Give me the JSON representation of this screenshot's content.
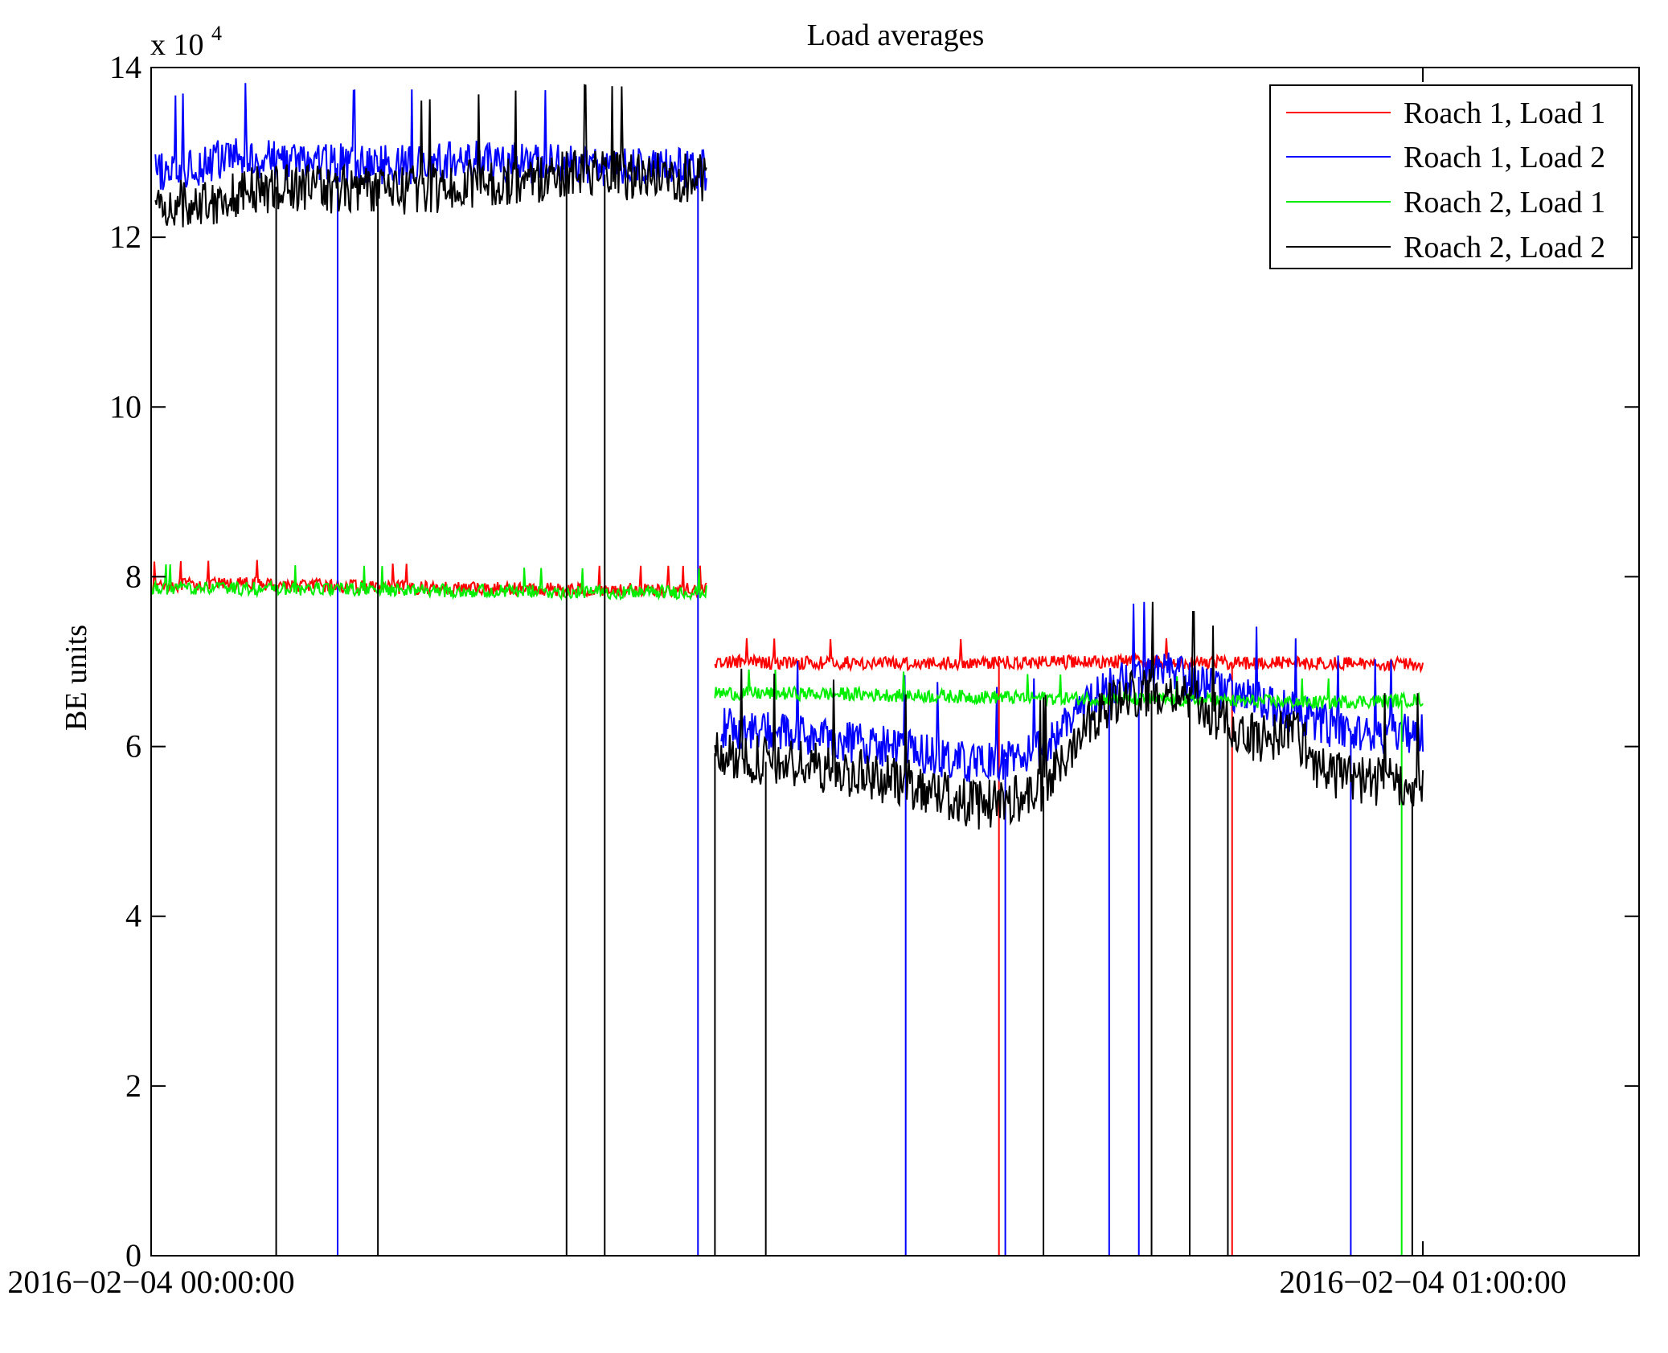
{
  "chart_data": {
    "type": "line",
    "title": "Load averages",
    "ylabel": "BE units",
    "xlabel": "",
    "y_multiplier_label": "x 10",
    "y_multiplier_exponent": "4",
    "ylim": [
      0,
      14
    ],
    "yticks": [
      "0",
      "2",
      "4",
      "6",
      "8",
      "10",
      "12",
      "14"
    ],
    "xlim_minutes": [
      0,
      70.2
    ],
    "xticks": [
      {
        "minute": 0,
        "label": "2016−02−04 00:00:00"
      },
      {
        "minute": 60,
        "label": "2016−02−04 01:00:00"
      }
    ],
    "legend_position": "top-right",
    "grid": false,
    "series": [
      {
        "name": "Roach 1, Load 1",
        "color": "#ff0000",
        "noise": 0.08,
        "segments": [
          [
            [
              0,
              7.9
            ],
            [
              5,
              7.92
            ],
            [
              10,
              7.88
            ],
            [
              20,
              7.85
            ],
            [
              26.2,
              7.85
            ]
          ],
          [
            [
              26.6,
              7.0
            ],
            [
              35,
              6.98
            ],
            [
              45,
              7.0
            ],
            [
              55,
              6.98
            ],
            [
              60,
              6.97
            ]
          ]
        ],
        "dropouts": [
          40.0,
          51.0
        ]
      },
      {
        "name": "Roach 1, Load 2",
        "color": "#0000ff",
        "noise": 0.25,
        "segments": [
          [
            [
              0.2,
              12.75
            ],
            [
              4,
              12.95
            ],
            [
              10,
              12.85
            ],
            [
              15,
              12.9
            ],
            [
              20,
              12.85
            ],
            [
              26.2,
              12.8
            ]
          ],
          [
            [
              26.9,
              6.22
            ],
            [
              30,
              6.15
            ],
            [
              35,
              6.0
            ],
            [
              39,
              5.78
            ],
            [
              42,
              5.95
            ],
            [
              44,
              6.5
            ],
            [
              46,
              6.8
            ],
            [
              48,
              6.87
            ],
            [
              50,
              6.7
            ],
            [
              52,
              6.55
            ],
            [
              54,
              6.4
            ],
            [
              56,
              6.2
            ],
            [
              58,
              6.15
            ],
            [
              60,
              6.15
            ]
          ]
        ],
        "dropouts": [
          8.8,
          25.8,
          35.6,
          40.3,
          45.2,
          46.6,
          56.6
        ]
      },
      {
        "name": "Roach 2, Load 1",
        "color": "#00ee00",
        "noise": 0.08,
        "segments": [
          [
            [
              0,
              7.87
            ],
            [
              10,
              7.85
            ],
            [
              20,
              7.82
            ],
            [
              26.2,
              7.82
            ]
          ],
          [
            [
              26.6,
              6.63
            ],
            [
              32,
              6.62
            ],
            [
              40,
              6.58
            ],
            [
              48,
              6.55
            ],
            [
              55,
              6.52
            ],
            [
              60,
              6.55
            ]
          ]
        ],
        "dropouts": [
          59.0
        ]
      },
      {
        "name": "Roach 2, Load 2",
        "color": "#000000",
        "noise": 0.3,
        "segments": [
          [
            [
              0.2,
              12.35
            ],
            [
              3,
              12.45
            ],
            [
              6,
              12.6
            ],
            [
              12,
              12.55
            ],
            [
              20,
              12.75
            ],
            [
              26.2,
              12.7
            ]
          ],
          [
            [
              26.6,
              5.92
            ],
            [
              29,
              5.82
            ],
            [
              32,
              5.75
            ],
            [
              36,
              5.55
            ],
            [
              39,
              5.3
            ],
            [
              41,
              5.4
            ],
            [
              42,
              5.5
            ],
            [
              43,
              5.8
            ],
            [
              44,
              6.3
            ],
            [
              46,
              6.6
            ],
            [
              48,
              6.7
            ],
            [
              49.5,
              6.5
            ],
            [
              50.5,
              6.3
            ],
            [
              52,
              6.1
            ],
            [
              53,
              6.12
            ],
            [
              53.8,
              6.25
            ],
            [
              55,
              5.8
            ],
            [
              56,
              5.65
            ],
            [
              58,
              5.58
            ],
            [
              60,
              5.58
            ]
          ]
        ],
        "dropouts": [
          5.9,
          10.7,
          19.6,
          21.4,
          26.6,
          29.0,
          42.1,
          47.2,
          49.0,
          50.8,
          59.5
        ]
      }
    ]
  }
}
